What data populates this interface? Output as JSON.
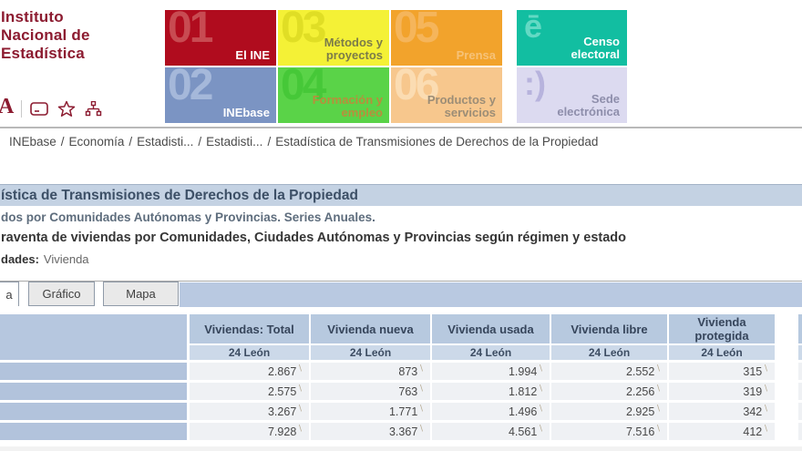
{
  "logo": {
    "lines": [
      "Instituto",
      "Nacional de",
      "Estadística"
    ]
  },
  "toolbar": {
    "text_size_label": "A"
  },
  "nav_tiles": [
    {
      "number": "01",
      "label": "El INE",
      "bg": "#b00c1e",
      "number_color": "#c84b52",
      "label_color": "#ffffff"
    },
    {
      "number": "03",
      "label": "Métodos y proyectos",
      "bg": "#f4f136",
      "number_color": "#e0de25",
      "label_color": "#7c7c49"
    },
    {
      "number": "05",
      "label": "Prensa",
      "bg": "#f2a32c",
      "number_color": "#f5b55b",
      "label_color": "#f6c278"
    },
    {
      "number": "02",
      "label": "INEbase",
      "bg": "#7b94c3",
      "number_color": "#a5b8da",
      "label_color": "#ffffff"
    },
    {
      "number": "04",
      "label": "Formación y empleo",
      "bg": "#5ad348",
      "number_color": "#46c838",
      "label_color": "#b98e3c"
    },
    {
      "number": "06",
      "label": "Productos y servicios",
      "bg": "#f7c78d",
      "number_color": "#fbdcb2",
      "label_color": "#9c8d76"
    }
  ],
  "side_tiles": [
    {
      "glyph": "ē",
      "label": "Censo electoral",
      "bg": "#12bea1",
      "glyph_color": "#63d9c4",
      "label_color": "#ffffff"
    },
    {
      "glyph": ":)",
      "label": "Sede electrónica",
      "bg": "#dcdaf0",
      "glyph_color": "#b7b3dd",
      "label_color": "#8e8eab"
    }
  ],
  "breadcrumb": {
    "separator": "/",
    "items": [
      "INEbase",
      "Economía",
      "Estadisti...",
      "Estadisti...",
      "Estadística de Transmisiones de Derechos de la Propiedad"
    ]
  },
  "page": {
    "title_bar": "ística de Transmisiones de Derechos de la Propiedad",
    "subtitle": "dos por Comunidades Autónomas y Provincias. Series Anuales.",
    "heading": "raventa de viviendas por Comunidades, Ciudades Autónomas y Provincias según régimen y estado",
    "units_label": "dades:",
    "units_value": "Vivienda"
  },
  "tabs": [
    {
      "name": "tabla",
      "label": "a",
      "active": true
    },
    {
      "name": "grafico",
      "label": "Gráfico"
    },
    {
      "name": "mapa",
      "label": "Mapa"
    }
  ],
  "table": {
    "columns": [
      "Viviendas: Total",
      "Vivienda nueva",
      "Vivienda usada",
      "Vivienda libre",
      "Vivienda protegida"
    ],
    "subheader": "24 León",
    "footnote_mark": "∖",
    "rows": [
      [
        "2.867",
        "873",
        "1.994",
        "2.552",
        "315"
      ],
      [
        "2.575",
        "763",
        "1.812",
        "2.256",
        "319"
      ],
      [
        "3.267",
        "1.771",
        "1.496",
        "2.925",
        "342"
      ],
      [
        "7.928",
        "3.367",
        "4.561",
        "7.516",
        "412"
      ]
    ]
  },
  "colors": {
    "brand": "#8c1b30",
    "titlebar_bg": "#c4d2e3",
    "tab_band_bg": "#b9c9e1",
    "table_header_bg": "#b7c9df",
    "table_subheader_bg": "#ccd9e9",
    "table_stub_bg": "#b2c3dc"
  }
}
